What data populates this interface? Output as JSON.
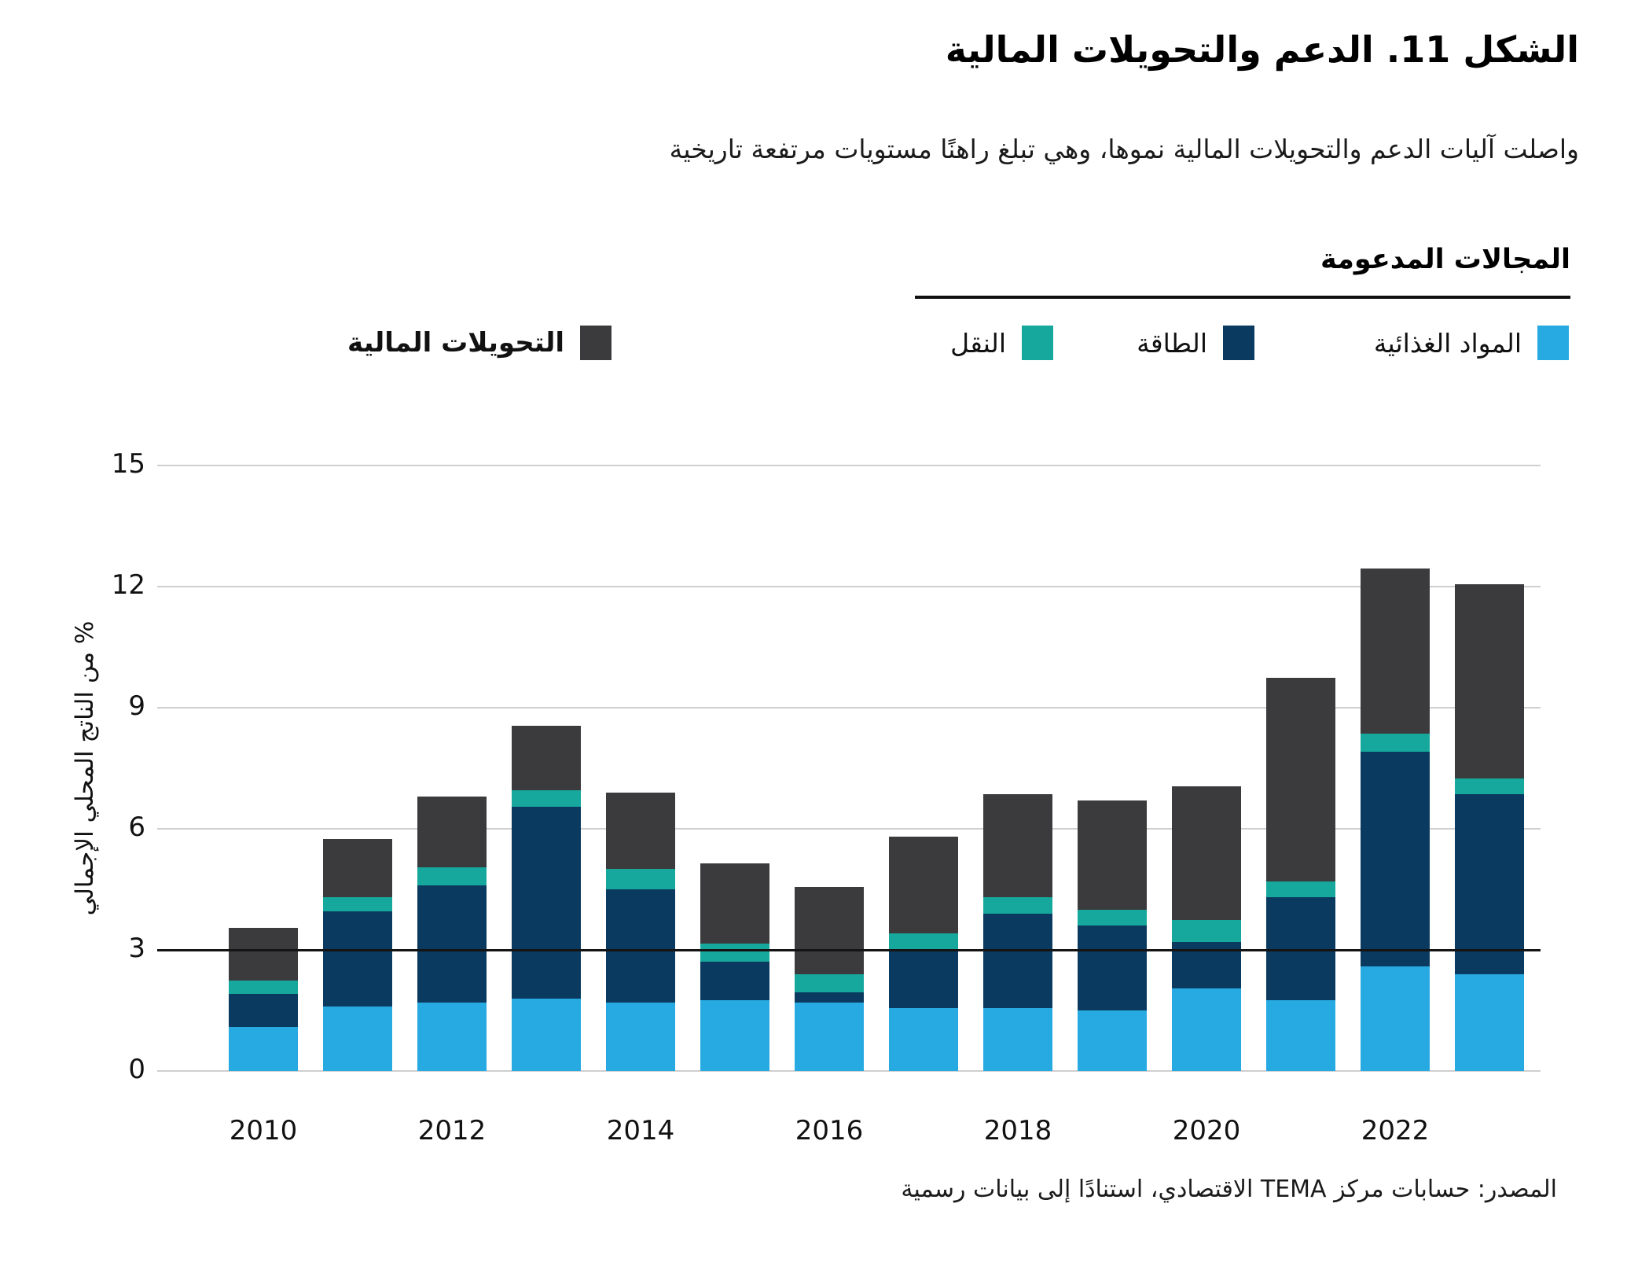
{
  "title": "الشكل 11. الدعم والتحويلات المالية",
  "subtitle": "واصلت آليات الدعم والتحويلات المالية نموها، وهي تبلغ راهنًا مستويات مرتفعة تاريخية",
  "legend": {
    "group_title": "المجالات المدعومة",
    "items": [
      {
        "key": "food",
        "label": "المواد الغذائية",
        "color": "#27AAE1"
      },
      {
        "key": "energy",
        "label": "الطاقة",
        "color": "#0A3A5F"
      },
      {
        "key": "transport",
        "label": "النقل",
        "color": "#16A89C"
      }
    ],
    "transfers": {
      "key": "transfers",
      "label": "التحويلات المالية",
      "color": "#3B3B3D"
    }
  },
  "chart_data": {
    "type": "bar",
    "stacked": true,
    "categories": [
      2010,
      2011,
      2012,
      2013,
      2014,
      2015,
      2016,
      2017,
      2018,
      2019,
      2020,
      2021,
      2022,
      2023
    ],
    "x_tick_labels": [
      "2010",
      "2012",
      "2014",
      "2016",
      "2018",
      "2020",
      "2022"
    ],
    "series": [
      {
        "name": "المواد الغذائية",
        "key": "food",
        "color": "#27AAE1",
        "values": [
          1.1,
          1.6,
          1.7,
          1.8,
          1.7,
          1.75,
          1.7,
          1.55,
          1.55,
          1.5,
          2.05,
          1.75,
          2.6,
          2.4
        ]
      },
      {
        "name": "الطاقة",
        "key": "energy",
        "color": "#0A3A5F",
        "values": [
          0.8,
          2.35,
          2.9,
          4.75,
          2.8,
          0.95,
          0.25,
          1.45,
          2.35,
          2.1,
          1.15,
          2.55,
          5.3,
          4.45
        ]
      },
      {
        "name": "النقل",
        "key": "transport",
        "color": "#16A89C",
        "values": [
          0.35,
          0.35,
          0.45,
          0.4,
          0.5,
          0.45,
          0.45,
          0.4,
          0.4,
          0.4,
          0.55,
          0.4,
          0.45,
          0.4
        ]
      },
      {
        "name": "التحويلات المالية",
        "key": "transfers",
        "color": "#3B3B3D",
        "values": [
          1.3,
          1.45,
          1.75,
          1.6,
          1.9,
          2.0,
          2.15,
          2.4,
          2.55,
          2.7,
          3.3,
          5.05,
          4.1,
          4.8
        ]
      }
    ],
    "totals": [
      3.55,
      5.75,
      6.8,
      8.55,
      6.9,
      5.15,
      4.55,
      5.8,
      6.85,
      6.7,
      7.05,
      9.75,
      12.45,
      12.05
    ],
    "ylabel": "% من الناتج المحلي الإجمالي",
    "yticks": [
      0,
      3,
      6,
      9,
      12,
      15
    ],
    "ylim": [
      0,
      15
    ],
    "ref_line": 3,
    "grid": true,
    "legend_position": "top"
  },
  "source": "المصدر: حسابات مركز TEMA الاقتصادي، استنادًا إلى بيانات رسمية"
}
